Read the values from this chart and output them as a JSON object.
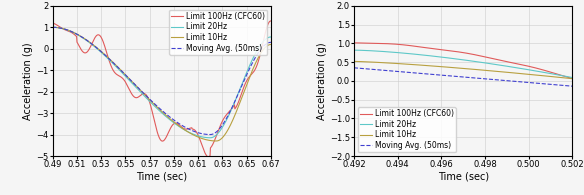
{
  "left": {
    "xlim": [
      0.49,
      0.67
    ],
    "ylim": [
      -5.0,
      2.0
    ],
    "xlabel": "Time (sec)",
    "ylabel": "Acceleration (g)",
    "xticks": [
      0.49,
      0.51,
      0.53,
      0.55,
      0.57,
      0.59,
      0.61,
      0.63,
      0.65,
      0.67
    ],
    "yticks": [
      -5.0,
      -4.0,
      -3.0,
      -2.0,
      -1.0,
      0.0,
      1.0,
      2.0
    ],
    "legend_loc": "upper right"
  },
  "right": {
    "xlim": [
      0.492,
      0.502
    ],
    "ylim": [
      -2.0,
      2.0
    ],
    "xlabel": "Time (sec)",
    "ylabel": "Acceleration (g)",
    "xticks": [
      0.492,
      0.494,
      0.496,
      0.498,
      0.5,
      0.502
    ],
    "yticks": [
      -2.0,
      -1.5,
      -1.0,
      -0.5,
      0.0,
      0.5,
      1.0,
      1.5,
      2.0
    ],
    "legend_loc": "lower left"
  },
  "colors": {
    "cfc60": "#e05a5a",
    "limit20": "#5ec8c8",
    "limit10": "#b8a040",
    "movavg": "#4040d0"
  },
  "legend_labels": [
    "Limit 100Hz (CFC60)",
    "Limit 20Hz",
    "Limit 10Hz",
    "Moving Avg. (50ms)"
  ],
  "background_color": "#f5f5f5",
  "grid_color": "#cccccc",
  "fontsize_tick": 6,
  "fontsize_label": 7,
  "fontsize_legend": 5.5
}
